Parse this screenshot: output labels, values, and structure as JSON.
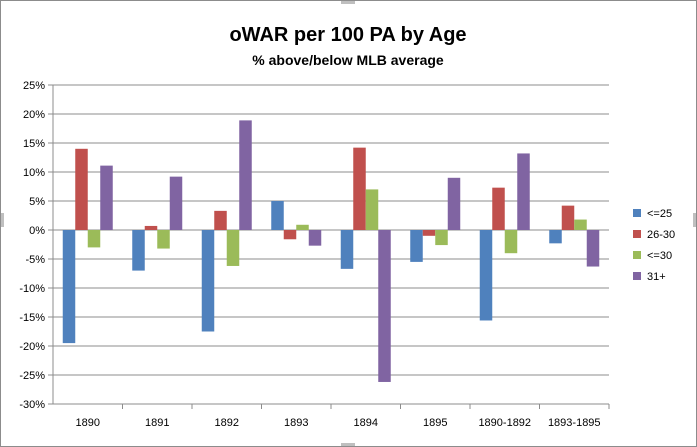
{
  "chart_data": {
    "type": "bar",
    "title": "oWAR per 100 PA by Age",
    "subtitle": "% above/below MLB average",
    "xlabel": "",
    "ylabel": "",
    "categories": [
      "1890",
      "1891",
      "1892",
      "1893",
      "1894",
      "1895",
      "1890-1892",
      "1893-1895"
    ],
    "ylim": [
      -30,
      25
    ],
    "ytick_step": 5,
    "ytick_labels": [
      "25%",
      "20%",
      "15%",
      "10%",
      "5%",
      "0%",
      "-5%",
      "-10%",
      "-15%",
      "-20%",
      "-25%",
      "-30%"
    ],
    "grid": true,
    "legend_position": "right",
    "series": [
      {
        "name": "<=25",
        "color": "#4f81bd",
        "values": [
          -19.5,
          -7.0,
          -17.5,
          5.0,
          -6.7,
          -5.5,
          -15.6,
          -2.3
        ]
      },
      {
        "name": "26-30",
        "color": "#c0504d",
        "values": [
          14.0,
          0.7,
          3.3,
          -1.6,
          14.2,
          -1.0,
          7.3,
          4.2
        ]
      },
      {
        "name": "<=30",
        "color": "#9bbb59",
        "values": [
          -3.0,
          -3.2,
          -6.2,
          0.9,
          7.0,
          -2.6,
          -4.0,
          1.8
        ]
      },
      {
        "name": "31+",
        "color": "#8064a2",
        "values": [
          11.1,
          9.2,
          18.9,
          -2.7,
          -26.2,
          9.0,
          13.2,
          -6.3
        ]
      }
    ]
  }
}
